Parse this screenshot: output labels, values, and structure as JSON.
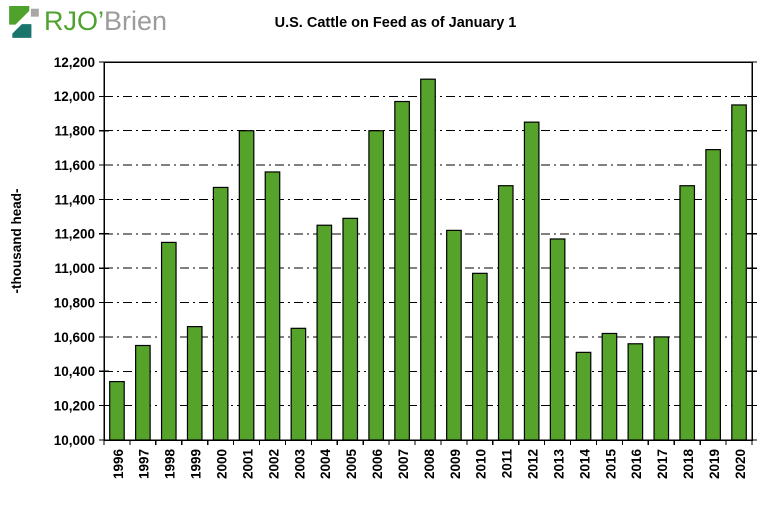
{
  "logo": {
    "text_green": "RJO’",
    "text_gray": "Brien",
    "mark_colors": {
      "green": "#4FA32C",
      "teal": "#19756B",
      "gray": "#A7A7A7"
    }
  },
  "chart_data": {
    "type": "bar",
    "title": "U.S. Cattle on Feed as of January 1",
    "xlabel": "",
    "ylabel": "-thousand head-",
    "categories": [
      "1996",
      "1997",
      "1998",
      "1999",
      "2000",
      "2001",
      "2002",
      "2003",
      "2004",
      "2005",
      "2006",
      "2007",
      "2008",
      "2009",
      "2010",
      "2011",
      "2012",
      "2013",
      "2014",
      "2015",
      "2016",
      "2017",
      "2018",
      "2019",
      "2020"
    ],
    "values": [
      10340,
      10550,
      11150,
      10660,
      11470,
      11800,
      11560,
      10650,
      11250,
      11290,
      11800,
      11970,
      12100,
      11220,
      10970,
      11480,
      11850,
      11170,
      10510,
      10620,
      10560,
      10600,
      11480,
      11690,
      11950
    ],
    "ylim": [
      10000,
      12200
    ],
    "ytick_step": 200,
    "grid": "horizontal-dash-dot",
    "legend": "none",
    "bar_color": "#55A32B",
    "bar_border_color": "#000000",
    "axis_color": "#000000",
    "background_color": "#FFFFFF"
  }
}
